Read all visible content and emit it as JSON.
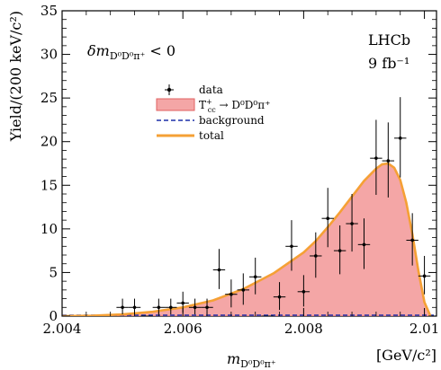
{
  "chart_data": {
    "type": "line",
    "title": "",
    "xlabel": "m_{D0D0π+} [GeV/c²]",
    "ylabel": "Yield/(200 keV/c²)",
    "xlim": [
      2.004,
      2.0102
    ],
    "ylim": [
      0,
      35
    ],
    "x_ticks": [
      2.004,
      2.006,
      2.008,
      2.01
    ],
    "x_tick_labels": [
      "2.004",
      "2.006",
      "2.008",
      "2.01"
    ],
    "y_ticks": [
      0,
      5,
      10,
      15,
      20,
      25,
      30,
      35
    ],
    "y_tick_labels": [
      "0",
      "5",
      "10",
      "15",
      "20",
      "25",
      "30",
      "35"
    ],
    "grid": false,
    "legend_position": "top-center",
    "annotations": {
      "cut": "δm_{D0D0π+} < 0",
      "experiment": "LHCb",
      "luminosity": "9 fb⁻¹"
    },
    "series": [
      {
        "name": "data",
        "kind": "points-with-errors",
        "color": "#000000",
        "x": [
          2.005,
          2.0052,
          2.0054,
          2.0056,
          2.0058,
          2.006,
          2.0062,
          2.0064,
          2.0066,
          2.0068,
          2.007,
          2.0072,
          2.0074,
          2.0076,
          2.0078,
          2.008,
          2.0082,
          2.0084,
          2.0086,
          2.0088,
          2.009,
          2.0092,
          2.0094,
          2.0096,
          2.0098,
          2.01
        ],
        "y": [
          1.0,
          1.0,
          0,
          1.0,
          1.0,
          1.5,
          1.0,
          1.0,
          5.3,
          2.5,
          3.0,
          4.5,
          0,
          2.2,
          8.0,
          2.8,
          6.9,
          11.2,
          7.5,
          10.6,
          8.2,
          18.1,
          17.8,
          20.4,
          8.7,
          4.6
        ],
        "yerr_low": [
          0.8,
          0.8,
          0,
          0.8,
          0.8,
          1.1,
          0.8,
          0.8,
          2.2,
          1.5,
          1.7,
          2.0,
          0,
          1.5,
          2.8,
          1.7,
          2.5,
          3.3,
          2.7,
          3.2,
          2.8,
          4.2,
          4.2,
          4.5,
          2.9,
          2.1
        ],
        "yerr_high": [
          1.0,
          1.0,
          0,
          1.0,
          1.0,
          1.3,
          1.0,
          1.0,
          2.4,
          1.7,
          1.9,
          2.2,
          0,
          1.7,
          3.0,
          1.9,
          2.7,
          3.5,
          2.9,
          3.4,
          3.0,
          4.4,
          4.4,
          4.7,
          3.1,
          2.3
        ]
      },
      {
        "name": "T+cc → D0D0π+",
        "kind": "filled",
        "color": "#f4a6a6",
        "edge": "#e06060",
        "x": [
          2.004,
          2.0045,
          2.005,
          2.0055,
          2.006,
          2.0065,
          2.007,
          2.0075,
          2.008,
          2.0082,
          2.0084,
          2.0086,
          2.0088,
          2.009,
          2.0092,
          2.0093,
          2.0094,
          2.0095,
          2.0096,
          2.0097,
          2.0098,
          2.0099,
          2.01,
          2.0101
        ],
        "y": [
          0.0,
          0.05,
          0.2,
          0.5,
          1.0,
          1.8,
          3.1,
          4.9,
          7.3,
          8.6,
          10.2,
          11.9,
          13.7,
          15.5,
          16.9,
          17.4,
          17.5,
          17.0,
          15.6,
          13.0,
          9.4,
          5.2,
          1.6,
          0.0
        ]
      },
      {
        "name": "background",
        "kind": "dashed",
        "color": "#1c2fa8",
        "x": [
          2.004,
          2.0102
        ],
        "y": [
          0.0,
          0.0
        ]
      },
      {
        "name": "total",
        "kind": "line",
        "color": "#f5a035",
        "x": [
          2.004,
          2.0045,
          2.005,
          2.0055,
          2.006,
          2.0065,
          2.007,
          2.0075,
          2.008,
          2.0082,
          2.0084,
          2.0086,
          2.0088,
          2.009,
          2.0092,
          2.0093,
          2.0094,
          2.0095,
          2.0096,
          2.0097,
          2.0098,
          2.0099,
          2.01,
          2.0101
        ],
        "y": [
          0.0,
          0.05,
          0.2,
          0.5,
          1.0,
          1.8,
          3.1,
          4.9,
          7.3,
          8.6,
          10.2,
          11.9,
          13.7,
          15.5,
          16.9,
          17.4,
          17.5,
          17.0,
          15.6,
          13.0,
          9.4,
          5.2,
          1.6,
          0.0
        ]
      }
    ]
  }
}
